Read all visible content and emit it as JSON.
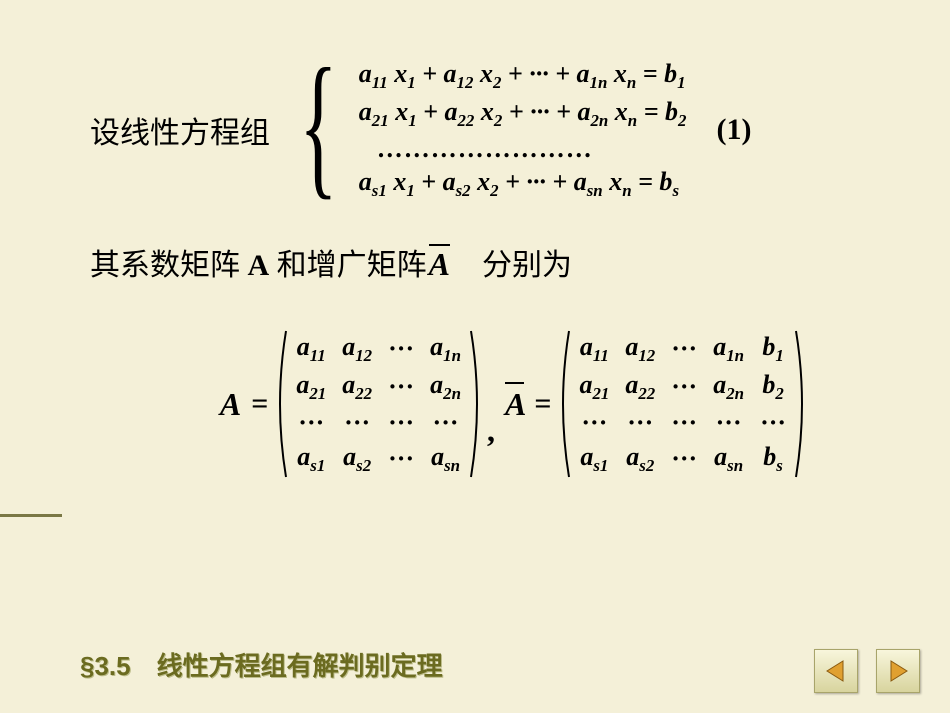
{
  "intro_label": "设线性方程组",
  "equation_rows": [
    "a<sub>11</sub> x<sub>1</sub> + a<sub>12</sub> x<sub>2</sub> + ··· + a<sub>1n</sub> x<sub>n</sub> = b<sub>1</sub>",
    "a<sub>21</sub> x<sub>1</sub> + a<sub>22</sub> x<sub>2</sub> + ··· + a<sub>2n</sub> x<sub>n</sub> = b<sub>2</sub>",
    "……………………",
    "a<sub>s1</sub> x<sub>1</sub> + a<sub>s2</sub> x<sub>2</sub> + ··· + a<sub>sn</sub> x<sub>n</sub> = b<sub>s</sub>"
  ],
  "equation_number": "(1)",
  "line2_pre": "其系数矩阵 ",
  "line2_A": "A",
  "line2_mid": " 和增广矩阵",
  "line2_Abar": "A",
  "line2_post": "　分别为",
  "matrixA_label": "A",
  "matrixA": [
    [
      "a<sub>11</sub>",
      "a<sub>12</sub>",
      "···",
      "a<sub>1n</sub>"
    ],
    [
      "a<sub>21</sub>",
      "a<sub>22</sub>",
      "···",
      "a<sub>2n</sub>"
    ],
    [
      "···",
      "···",
      "···",
      "···"
    ],
    [
      "a<sub>s1</sub>",
      "a<sub>s2</sub>",
      "···",
      "a<sub>sn</sub>"
    ]
  ],
  "matrixAbar_label": "A",
  "matrixAbar": [
    [
      "a<sub>11</sub>",
      "a<sub>12</sub>",
      "···",
      "a<sub>1n</sub>",
      "b<sub>1</sub>"
    ],
    [
      "a<sub>21</sub>",
      "a<sub>22</sub>",
      "···",
      "a<sub>2n</sub>",
      "b<sub>2</sub>"
    ],
    [
      "···",
      "···",
      "···",
      "···",
      "···"
    ],
    [
      "a<sub>s1</sub>",
      "a<sub>s2</sub>",
      "···",
      "a<sub>sn</sub>",
      "b<sub>s</sub>"
    ]
  ],
  "footer_title": "§3.5　线性方程组有解判别定理",
  "colors": {
    "background": "#f4f0d8",
    "text": "#000000",
    "footer_text": "#6b6b20",
    "footer_shadow": "#bdbd8a",
    "rule": "#7a7845",
    "arrow": "#e0a030",
    "btn_border": "#a8a46a"
  }
}
